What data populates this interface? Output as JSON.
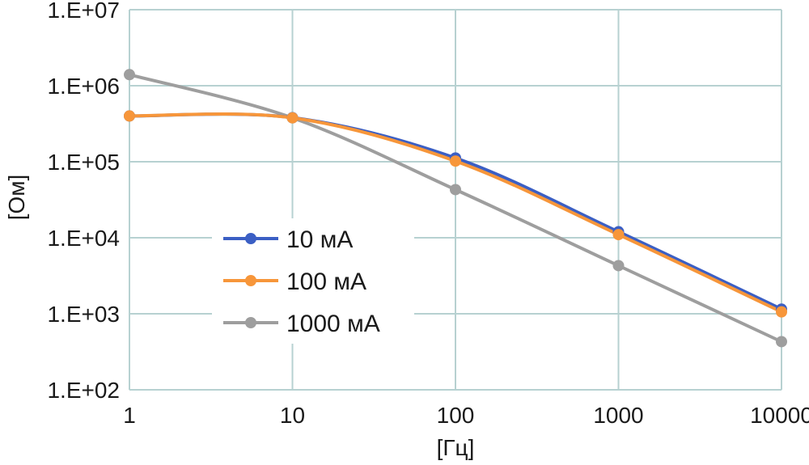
{
  "chart_data": {
    "type": "line",
    "x_scale": "log",
    "y_scale": "log",
    "xlabel": "[Гц]",
    "ylabel": "[Ом]",
    "xlim": [
      1,
      10000
    ],
    "ylim": [
      100,
      10000000
    ],
    "x_ticks": [
      1,
      10,
      100,
      1000,
      10000
    ],
    "x_tick_labels": [
      "1",
      "10",
      "100",
      "1000",
      "10000"
    ],
    "y_ticks": [
      100,
      1000,
      10000,
      100000,
      1000000,
      10000000
    ],
    "y_tick_labels": [
      "1.E+02",
      "1.E+03",
      "1.E+04",
      "1.E+05",
      "1.E+06",
      "1.E+07"
    ],
    "grid": true,
    "legend_position": "center-left",
    "series": [
      {
        "name": "10 мА",
        "color": "#3b5fc4",
        "x": [
          1,
          10,
          100,
          1000,
          10000
        ],
        "y": [
          400000,
          380000,
          112000,
          12000,
          1150
        ]
      },
      {
        "name": "100 мА",
        "color": "#f7963a",
        "x": [
          1,
          10,
          100,
          1000,
          10000
        ],
        "y": [
          400000,
          378000,
          102000,
          11000,
          1060
        ]
      },
      {
        "name": "1000 мА",
        "color": "#9e9e9e",
        "x": [
          1,
          10,
          100,
          1000,
          10000
        ],
        "y": [
          1400000,
          378000,
          43000,
          4300,
          430
        ]
      }
    ]
  }
}
